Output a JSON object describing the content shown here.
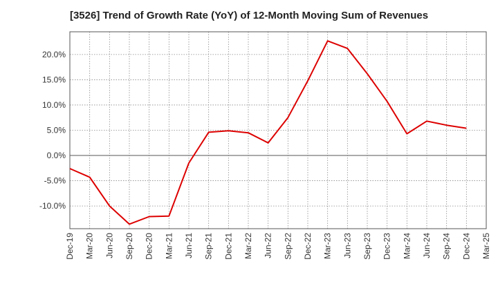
{
  "chart_data": {
    "type": "line",
    "title": "[3526]  Trend of Growth Rate (YoY) of 12-Month Moving Sum of Revenues",
    "xlabel": "",
    "ylabel": "",
    "x_ticks": [
      "Dec-19",
      "Mar-20",
      "Jun-20",
      "Sep-20",
      "Dec-20",
      "Mar-21",
      "Jun-21",
      "Sep-21",
      "Dec-21",
      "Mar-22",
      "Jun-22",
      "Sep-22",
      "Dec-22",
      "Mar-23",
      "Jun-23",
      "Sep-23",
      "Dec-23",
      "Mar-24",
      "Jun-24",
      "Sep-24",
      "Dec-24",
      "Mar-25"
    ],
    "y_ticks": [
      "20.0%",
      "15.0%",
      "10.0%",
      "5.0%",
      "0.0%",
      "-5.0%",
      "-10.0%"
    ],
    "y_tick_values": [
      20,
      15,
      10,
      5,
      0,
      -5,
      -10
    ],
    "ylim": [
      -14.5,
      24.5
    ],
    "grid": true,
    "series": [
      {
        "color": "#dd0000",
        "x": [
          "Dec-19",
          "Mar-20",
          "Jun-20",
          "Sep-20",
          "Dec-20",
          "Mar-21",
          "Jun-21",
          "Sep-21",
          "Dec-21",
          "Mar-22",
          "Jun-22",
          "Sep-22",
          "Dec-22",
          "Mar-23",
          "Jun-23",
          "Sep-23",
          "Dec-23",
          "Mar-24",
          "Jun-24",
          "Sep-24",
          "Dec-24"
        ],
        "values": [
          -2.6,
          -4.3,
          -10.0,
          -13.6,
          -12.1,
          -12.0,
          -1.5,
          4.6,
          4.9,
          4.5,
          2.5,
          7.5,
          14.8,
          22.7,
          21.2,
          16.2,
          10.7,
          4.3,
          6.8,
          6.0,
          5.4
        ]
      }
    ]
  }
}
